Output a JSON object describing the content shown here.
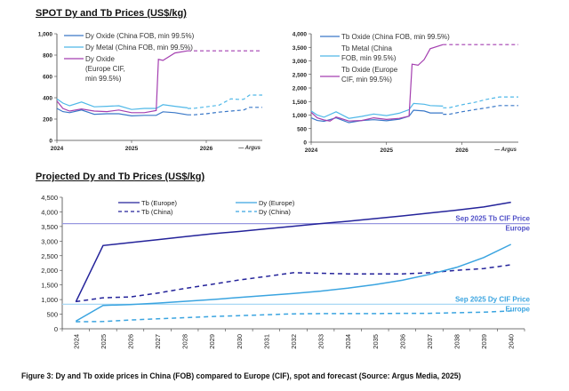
{
  "top_title": "SPOT Dy and Tb Prices (US$/kg)",
  "bottom_title": "Projected Dy and Tb Prices (US$/kg)",
  "caption": "Figure 3: Dy and Tb oxide prices in China (FOB) compared to Europe (CIF), spot and forecast (Source: Argus Media, 2025)",
  "colors": {
    "dark_blue": "#3a78c8",
    "light_blue": "#4fb8e8",
    "magenta": "#a43fb0",
    "navy": "#24239a",
    "sky": "#3aa4e0",
    "tb_ref": "#9898e0",
    "dy_ref": "#a8d8f4"
  },
  "chart_data": [
    {
      "type": "line",
      "title": "SPOT Dy prices",
      "xlabel": "",
      "ylabel": "",
      "x_ticks": [
        "2024",
        "2025",
        "2026"
      ],
      "xlim": [
        2024,
        2026.75
      ],
      "ylim": [
        0,
        1000
      ],
      "y_ticks": [
        "0",
        "200",
        "400",
        "600",
        "800",
        "1,000"
      ],
      "source_note": "Argus",
      "legend": "top-left",
      "series": [
        {
          "name": "Dy Oxide (China FOB, min 99.5%)",
          "color": "#3a78c8",
          "x": [
            2024,
            2024.08,
            2024.17,
            2024.33,
            2024.5,
            2024.67,
            2024.83,
            2025,
            2025.17,
            2025.33,
            2025.42,
            2025.58,
            2025.75
          ],
          "values": [
            300,
            270,
            260,
            285,
            245,
            250,
            250,
            230,
            235,
            235,
            268,
            260,
            240
          ],
          "forecast_x": [
            2025.75,
            2025.83,
            2026,
            2026.17,
            2026.33,
            2026.5,
            2026.58,
            2026.75
          ],
          "forecast": [
            240,
            240,
            250,
            265,
            275,
            285,
            310,
            310
          ]
        },
        {
          "name": "Dy Metal (China FOB, min 99.5%)",
          "color": "#4fb8e8",
          "x": [
            2024,
            2024.08,
            2024.17,
            2024.33,
            2024.5,
            2024.67,
            2024.83,
            2025,
            2025.17,
            2025.33,
            2025.42,
            2025.58,
            2025.75
          ],
          "values": [
            390,
            350,
            325,
            360,
            315,
            320,
            325,
            290,
            300,
            300,
            335,
            320,
            305
          ],
          "forecast_x": [
            2025.75,
            2025.83,
            2026,
            2026.17,
            2026.33,
            2026.42,
            2026.5,
            2026.58,
            2026.75
          ],
          "forecast": [
            300,
            300,
            315,
            330,
            390,
            385,
            385,
            425,
            425
          ]
        },
        {
          "name": "Dy Oxide (Europe CIF, min 99.5%)",
          "color": "#a43fb0",
          "x": [
            2024,
            2024.08,
            2024.17,
            2024.33,
            2024.5,
            2024.67,
            2024.83,
            2025,
            2025.17,
            2025.33,
            2025.36,
            2025.42,
            2025.58,
            2025.75
          ],
          "values": [
            370,
            300,
            275,
            295,
            275,
            270,
            285,
            260,
            260,
            280,
            760,
            750,
            820,
            840
          ],
          "forecast_x": [
            2025.75,
            2026.75
          ],
          "forecast": [
            840,
            840
          ]
        }
      ]
    },
    {
      "type": "line",
      "title": "SPOT Tb prices",
      "xlabel": "",
      "ylabel": "",
      "x_ticks": [
        "2024",
        "2025",
        "2026"
      ],
      "xlim": [
        2024,
        2026.75
      ],
      "ylim": [
        0,
        4000
      ],
      "y_ticks": [
        "0",
        "500",
        "1,000",
        "1,500",
        "2,000",
        "2,500",
        "3,000",
        "3,500",
        "4,000"
      ],
      "source_note": "Argus",
      "legend": "top-left",
      "series": [
        {
          "name": "Tb Oxide (China FOB, min 99.5%)",
          "color": "#3a78c8",
          "x": [
            2024,
            2024.08,
            2024.17,
            2024.33,
            2024.5,
            2024.67,
            2024.83,
            2025,
            2025.17,
            2025.3,
            2025.36,
            2025.5,
            2025.58,
            2025.75
          ],
          "values": [
            900,
            800,
            770,
            900,
            720,
            800,
            830,
            790,
            850,
            960,
            1180,
            1150,
            1080,
            1080
          ],
          "forecast_x": [
            2025.75,
            2025.83,
            2026,
            2026.17,
            2026.33,
            2026.5,
            2026.75
          ],
          "forecast": [
            1030,
            1030,
            1120,
            1200,
            1270,
            1350,
            1350
          ]
        },
        {
          "name": "Tb Metal (China FOB, min 99.5%)",
          "color": "#4fb8e8",
          "x": [
            2024,
            2024.08,
            2024.17,
            2024.33,
            2024.5,
            2024.67,
            2024.83,
            2025,
            2025.17,
            2025.3,
            2025.36,
            2025.5,
            2025.58,
            2025.75
          ],
          "values": [
            1150,
            1000,
            920,
            1120,
            880,
            950,
            1040,
            980,
            1070,
            1200,
            1430,
            1400,
            1350,
            1330
          ],
          "forecast_x": [
            2025.75,
            2025.83,
            2026,
            2026.17,
            2026.33,
            2026.5,
            2026.75
          ],
          "forecast": [
            1270,
            1270,
            1380,
            1470,
            1580,
            1670,
            1670
          ]
        },
        {
          "name": "Tb Oxide (Europe CIF, min 99.5%)",
          "color": "#a43fb0",
          "x": [
            2024,
            2024.08,
            2024.17,
            2024.25,
            2024.33,
            2024.5,
            2024.67,
            2024.83,
            2025,
            2025.17,
            2025.3,
            2025.34,
            2025.42,
            2025.5,
            2025.58,
            2025.75
          ],
          "values": [
            1100,
            900,
            820,
            780,
            930,
            780,
            800,
            900,
            840,
            880,
            960,
            2880,
            2840,
            3050,
            3450,
            3600
          ],
          "forecast_x": [
            2025.75,
            2026.75
          ],
          "forecast": [
            3600,
            3600
          ]
        }
      ]
    },
    {
      "type": "line",
      "title": "Projected Dy and Tb Prices (US$/kg)",
      "xlabel": "",
      "ylabel": "",
      "categories": [
        "2024",
        "2025",
        "2026",
        "2027",
        "2028",
        "2029",
        "2030",
        "2031",
        "2032",
        "2033",
        "2034",
        "2035",
        "2036",
        "2037",
        "2038",
        "2039",
        "2040"
      ],
      "ylim": [
        0,
        4500
      ],
      "y_ticks": [
        "0",
        "500",
        "1,000",
        "1,500",
        "2,000",
        "2,500",
        "3,000",
        "3,500",
        "4,000",
        "4,500"
      ],
      "legend": "top-center",
      "series": [
        {
          "name": "Tb (Europe)",
          "style": "solid",
          "color": "#24239a",
          "values": [
            920,
            2850,
            2950,
            3050,
            3150,
            3250,
            3330,
            3420,
            3510,
            3600,
            3680,
            3770,
            3860,
            3960,
            4060,
            4170,
            4330
          ]
        },
        {
          "name": "Tb (China)",
          "style": "dashed",
          "color": "#24239a",
          "values": [
            930,
            1060,
            1090,
            1220,
            1380,
            1520,
            1670,
            1790,
            1920,
            1900,
            1880,
            1880,
            1880,
            1920,
            2000,
            2060,
            2190
          ]
        },
        {
          "name": "Dy (Europe)",
          "style": "solid",
          "color": "#3aa4e0",
          "values": [
            260,
            800,
            830,
            880,
            940,
            1000,
            1070,
            1140,
            1210,
            1290,
            1390,
            1510,
            1660,
            1860,
            2100,
            2440,
            2890
          ]
        },
        {
          "name": "Dy (China)",
          "style": "dashed",
          "color": "#3aa4e0",
          "values": [
            240,
            250,
            300,
            340,
            380,
            420,
            450,
            480,
            510,
            520,
            520,
            520,
            530,
            530,
            550,
            570,
            610
          ]
        }
      ],
      "reference_lines": [
        {
          "label_line1": "Sep 2025 Tb CIF Price",
          "label_line2": "Europe",
          "value": 3600,
          "color": "#9898e0",
          "text_color": "#5050c8"
        },
        {
          "label_line1": "Sep 2025 Dy CIF Price",
          "label_line2": "Europe",
          "value": 840,
          "color": "#a8d8f4",
          "text_color": "#3aa4e0"
        }
      ]
    }
  ]
}
